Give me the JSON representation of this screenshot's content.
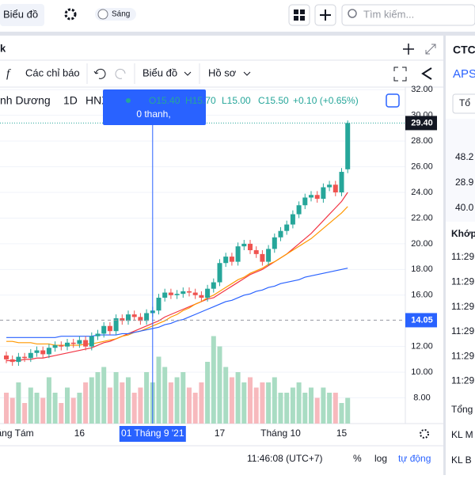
{
  "header": {
    "chart_button": "Biểu đồ",
    "theme": "Sáng",
    "search": "Tìm kiếm..."
  },
  "panel": {
    "tab": "k",
    "indicators": "Các chỉ báo",
    "chart_menu": "Biểu đồ",
    "profile_menu": "Hồ sơ"
  },
  "legend": {
    "symbol": "nh Dương",
    "interval": "1D",
    "exchange": "HNX",
    "open": "O15.40",
    "high": "H15.70",
    "low": "L15.00",
    "close": "C15.50",
    "change": "+0.10 (+0.65%)",
    "tooltip": "0 thanh,"
  },
  "chart_data": {
    "type": "candlestick",
    "categories": [
      null,
      "háng Tám",
      null,
      null,
      null,
      null,
      null,
      null,
      null,
      null,
      null,
      null,
      "16",
      null,
      null,
      null,
      null,
      null,
      null,
      null,
      null,
      null,
      null,
      null,
      "01 Tháng 9 '21",
      null,
      null,
      null,
      null,
      null,
      null,
      null,
      null,
      null,
      null,
      "17",
      null,
      null,
      null,
      null,
      null,
      null,
      null,
      null,
      null,
      "Tháng 10",
      null,
      null,
      null,
      null,
      null,
      null,
      null,
      null,
      null,
      "15",
      null
    ],
    "open": [
      11.3,
      11.0,
      10.8,
      11.2,
      11.1,
      11.5,
      11.7,
      11.4,
      11.9,
      12.1,
      12.0,
      12.3,
      12.2,
      12.5,
      12.0,
      12.8,
      13.0,
      13.6,
      13.2,
      14.2,
      14.0,
      14.5,
      14.3,
      14.0,
      14.6,
      14.8,
      15.8,
      16.2,
      16.0,
      16.1,
      16.3,
      16.2,
      16.0,
      15.8,
      16.5,
      17.0,
      18.5,
      19.0,
      18.6,
      19.8,
      20.0,
      19.5,
      19.2,
      18.6,
      19.6,
      20.5,
      21.0,
      21.5,
      22.3,
      23.0,
      23.6,
      23.8,
      23.5,
      24.4,
      24.6,
      24.0,
      25.8
    ],
    "high": [
      11.6,
      11.3,
      11.5,
      11.5,
      11.8,
      12.0,
      12.0,
      12.2,
      12.4,
      12.4,
      12.6,
      12.6,
      12.8,
      12.8,
      13.1,
      13.3,
      13.9,
      13.9,
      14.5,
      14.5,
      14.8,
      14.8,
      14.6,
      14.9,
      15.1,
      16.1,
      16.5,
      16.5,
      16.4,
      16.6,
      16.6,
      16.5,
      16.3,
      16.8,
      17.3,
      18.8,
      19.3,
      19.3,
      20.1,
      20.3,
      20.3,
      19.8,
      19.5,
      19.9,
      20.8,
      21.3,
      21.8,
      22.6,
      23.3,
      23.9,
      24.1,
      24.1,
      24.7,
      24.9,
      24.9,
      25.9,
      29.6
    ],
    "low": [
      10.7,
      10.5,
      10.5,
      10.8,
      10.8,
      11.2,
      11.1,
      11.1,
      11.6,
      11.7,
      11.7,
      11.9,
      11.9,
      11.7,
      11.7,
      12.5,
      12.7,
      12.9,
      12.9,
      13.7,
      13.7,
      14.0,
      13.7,
      13.7,
      14.3,
      14.5,
      15.5,
      15.7,
      15.7,
      15.8,
      15.9,
      15.7,
      15.5,
      15.5,
      16.2,
      16.7,
      18.2,
      18.3,
      18.3,
      19.5,
      19.2,
      18.9,
      18.3,
      18.3,
      19.3,
      20.2,
      20.7,
      21.2,
      22.0,
      22.7,
      23.3,
      23.2,
      23.2,
      24.1,
      23.7,
      23.7,
      25.5
    ],
    "close": [
      11.0,
      10.8,
      11.2,
      11.1,
      11.5,
      11.7,
      11.4,
      11.9,
      12.1,
      12.0,
      12.3,
      12.2,
      12.5,
      12.0,
      12.8,
      13.0,
      13.6,
      13.2,
      14.2,
      14.0,
      14.5,
      14.3,
      14.0,
      14.6,
      14.8,
      15.8,
      16.2,
      16.0,
      16.1,
      16.3,
      16.2,
      16.0,
      15.8,
      16.5,
      17.0,
      18.5,
      19.0,
      18.6,
      19.8,
      20.0,
      19.5,
      19.2,
      18.6,
      19.6,
      20.5,
      21.0,
      21.5,
      22.3,
      23.0,
      23.6,
      23.8,
      23.5,
      24.4,
      24.6,
      24.0,
      25.6,
      29.4
    ],
    "volume": [
      30,
      25,
      40,
      20,
      35,
      30,
      25,
      45,
      30,
      20,
      35,
      25,
      30,
      40,
      45,
      50,
      55,
      35,
      50,
      40,
      45,
      30,
      35,
      50,
      40,
      65,
      55,
      40,
      45,
      50,
      35,
      30,
      40,
      60,
      85,
      75,
      55,
      45,
      50,
      40,
      45,
      35,
      40,
      40,
      45,
      30,
      30,
      35,
      40,
      30,
      35,
      25,
      35,
      30,
      30,
      20,
      25
    ],
    "vlim": [
      0,
      100
    ],
    "series": [
      {
        "color": "#f23645",
        "values": [
          10.9,
          10.9,
          10.9,
          11.0,
          11.0,
          11.1,
          11.1,
          11.2,
          11.3,
          11.4,
          11.5,
          11.6,
          11.7,
          11.8,
          11.9,
          12.1,
          12.3,
          12.4,
          12.6,
          12.8,
          13.0,
          13.2,
          13.4,
          13.6,
          13.8,
          14.0,
          14.3,
          14.5,
          14.7,
          14.9,
          15.1,
          15.3,
          15.5,
          15.7,
          15.8,
          16.1,
          16.4,
          16.7,
          17.0,
          17.3,
          17.6,
          17.8,
          18.0,
          18.3,
          18.6,
          18.9,
          19.2,
          19.6,
          20.0,
          20.4,
          20.8,
          21.3,
          21.8,
          22.3,
          22.8,
          23.3,
          24.0
        ]
      },
      {
        "color": "#ff9800",
        "values": [
          12.4,
          12.4,
          12.3,
          12.3,
          12.3,
          12.2,
          12.2,
          12.2,
          12.1,
          12.1,
          12.1,
          12.1,
          12.1,
          12.2,
          12.2,
          12.3,
          12.4,
          12.5,
          12.6,
          12.8,
          12.9,
          13.1,
          13.2,
          13.4,
          13.6,
          13.8,
          14.0,
          14.3,
          14.5,
          14.8,
          15.0,
          15.3,
          15.5,
          15.8,
          16.0,
          16.3,
          16.6,
          16.9,
          17.2,
          17.4,
          17.7,
          17.9,
          18.1,
          18.4,
          18.6,
          18.9,
          19.2,
          19.5,
          19.8,
          20.1,
          20.4,
          20.8,
          21.2,
          21.6,
          22.0,
          22.4,
          22.9
        ]
      },
      {
        "color": "#2962ff",
        "values": [
          12.7,
          12.7,
          12.7,
          12.7,
          12.7,
          12.7,
          12.7,
          12.7,
          12.7,
          12.8,
          12.8,
          12.8,
          12.8,
          12.8,
          12.8,
          12.9,
          12.9,
          12.9,
          12.9,
          13.0,
          13.0,
          13.1,
          13.2,
          13.3,
          13.4,
          13.5,
          13.7,
          13.8,
          14.0,
          14.1,
          14.3,
          14.5,
          14.7,
          14.9,
          15.1,
          15.3,
          15.5,
          15.6,
          15.8,
          16.0,
          16.1,
          16.3,
          16.4,
          16.6,
          16.7,
          16.9,
          17.0,
          17.1,
          17.2,
          17.4,
          17.5,
          17.6,
          17.7,
          17.8,
          17.9,
          18.0,
          18.1
        ]
      }
    ],
    "up_color": "#26a69a",
    "down_color": "#ef5350",
    "volume_up_color": "#a9dcc3",
    "volume_down_color": "#f7b9bd",
    "ylim": [
      6,
      32.2
    ],
    "yticks": [
      {
        "value": 8,
        "label": "8.00"
      },
      {
        "value": 10,
        "label": "10.00"
      },
      {
        "value": 12,
        "label": "12.00"
      },
      {
        "value": 16,
        "label": "16.00"
      },
      {
        "value": 18,
        "label": "18.00"
      },
      {
        "value": 20,
        "label": "20.00"
      },
      {
        "value": 22,
        "label": "22.00"
      },
      {
        "value": 24,
        "label": "24.00"
      },
      {
        "value": 26,
        "label": "26.00"
      },
      {
        "value": 28,
        "label": "28.00"
      },
      {
        "value": 30,
        "label": "30.00"
      },
      {
        "value": 32,
        "label": "32.00"
      }
    ],
    "last_price": {
      "value": 29.4,
      "label": "29.40"
    },
    "crosshair_price": {
      "value": 14.05,
      "label": "14.05"
    },
    "grid": true
  },
  "footer": {
    "time": "11:46:08 (UTC+7)",
    "percent": "%",
    "log": "log",
    "auto": "tự động"
  },
  "sidebar": {
    "symbol": "CTC",
    "exchange": "APS",
    "button": "Tổ",
    "stats": [
      "48.2",
      "28.9",
      "40.0"
    ],
    "trades": "Khớp",
    "times": [
      "11:29",
      "11:29",
      "11:29",
      "11:29",
      "11:29",
      "11:29"
    ],
    "total": "Tổng",
    "buy": "KL M",
    "sell": "KL B"
  }
}
